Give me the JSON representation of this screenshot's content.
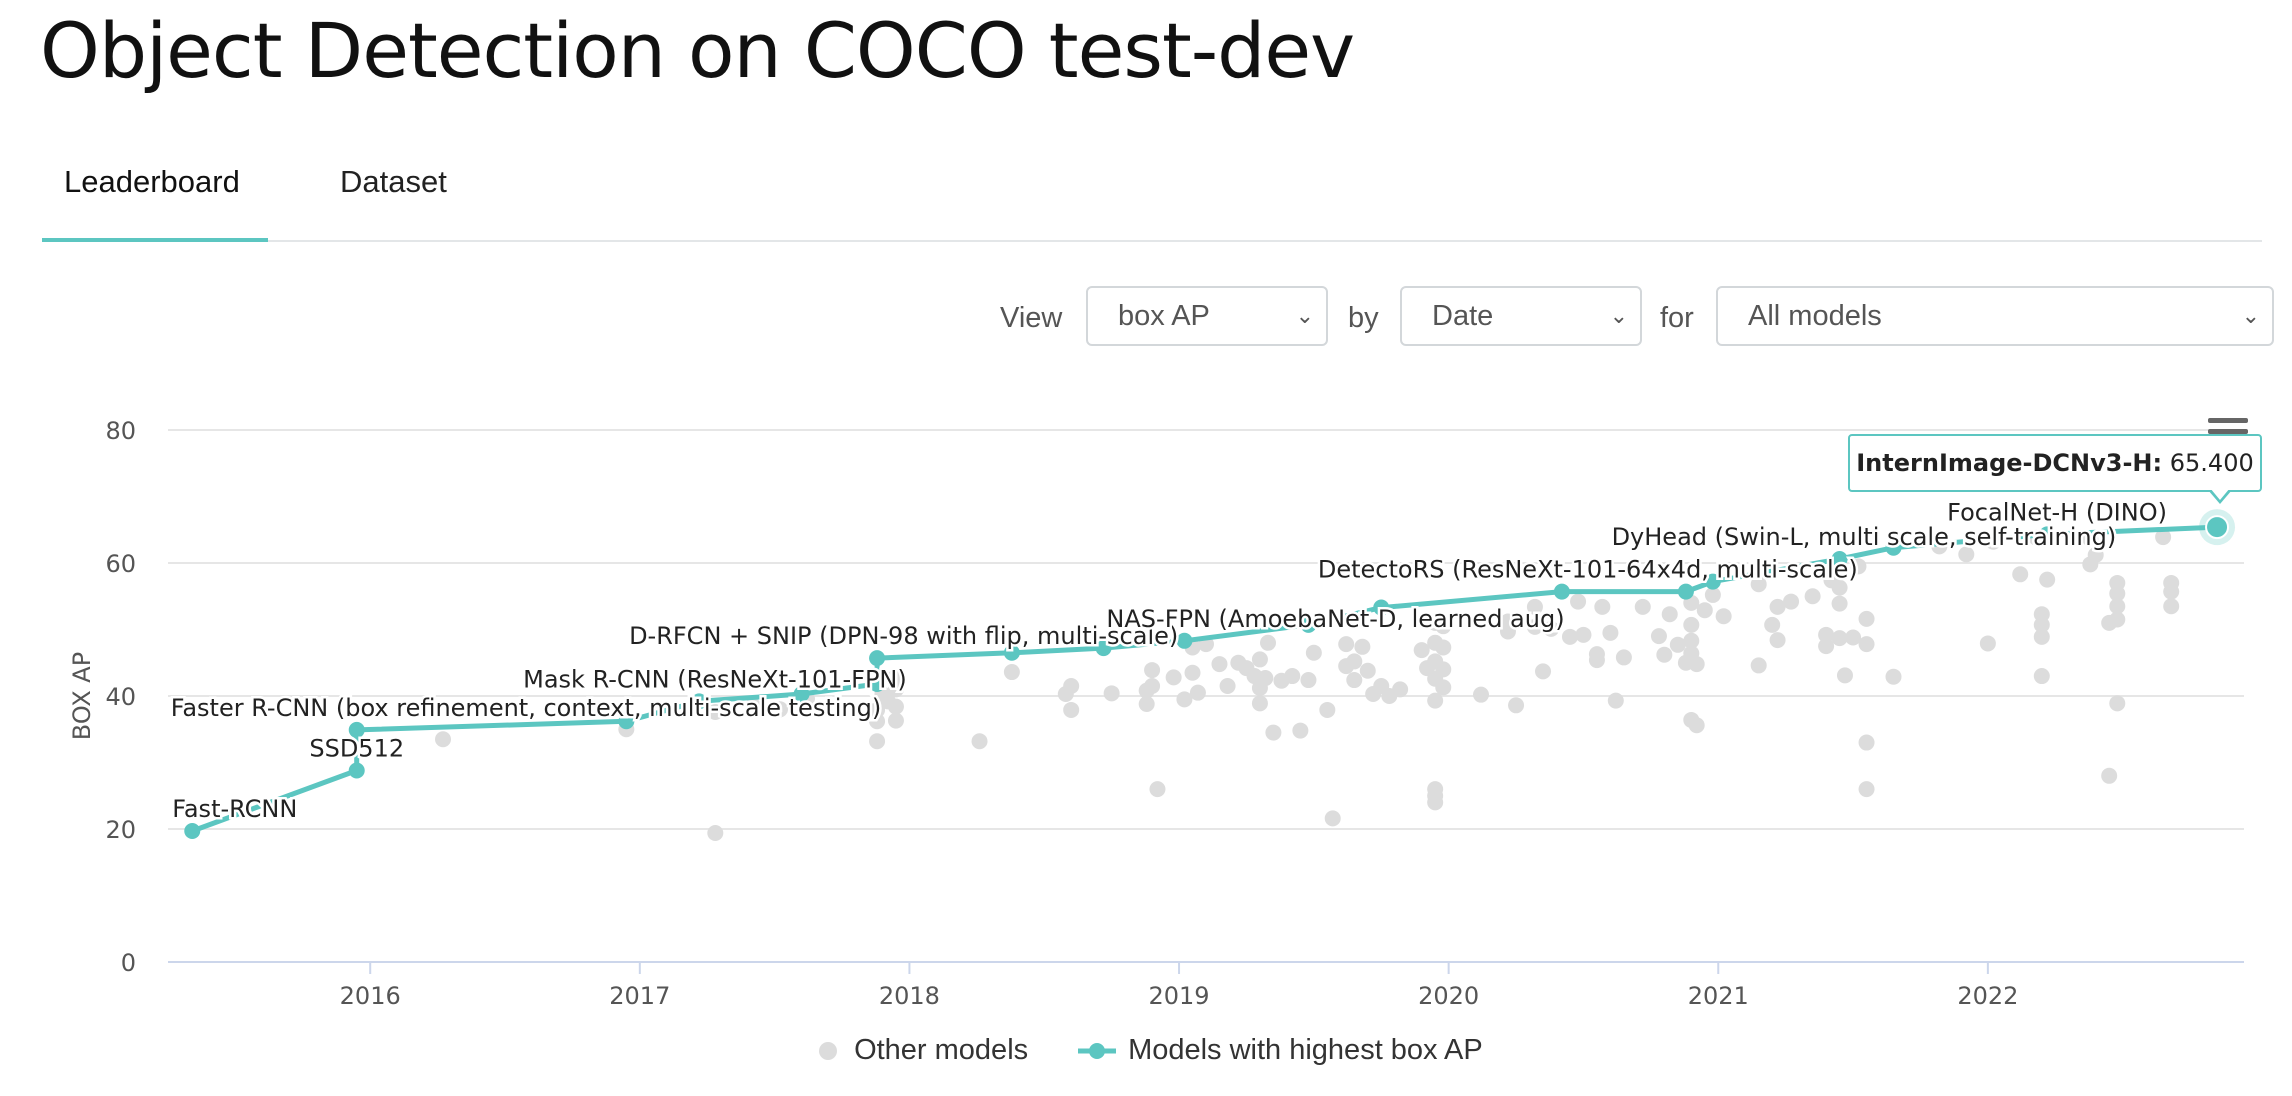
{
  "page": {
    "title": "Object Detection on COCO test-dev"
  },
  "tabs": [
    {
      "label": "Leaderboard"
    },
    {
      "label": "Dataset"
    }
  ],
  "filters": {
    "view_label": "View",
    "view_value": "box AP",
    "by_label": "by",
    "by_value": "Date",
    "for_label": "for",
    "for_value": "All models"
  },
  "colors": {
    "accent": "#5cc6c1",
    "other_points": "#dcdcdc",
    "grid": "#e6e6e6",
    "axis": "#ccd6eb"
  },
  "icons": {
    "chevron": "chevron-down-icon",
    "menu": "hamburger-menu-icon"
  },
  "tooltip": {
    "model": "InternImage-DCNv3-H:",
    "value": "65.400"
  },
  "chart_data": {
    "type": "scatter",
    "ylabel": "BOX AP",
    "xlabel": "",
    "ylim": [
      0,
      80
    ],
    "yticks": [
      "0",
      "20",
      "40",
      "60",
      "80"
    ],
    "xticks": [
      "2016",
      "2017",
      "2018",
      "2019",
      "2020",
      "2021",
      "2022"
    ],
    "xlim": [
      2015.25,
      2022.95
    ],
    "grid": true,
    "legend": {
      "placement": "bottom",
      "items": [
        "Other models",
        "Models with highest box AP"
      ]
    },
    "series": [
      {
        "name": "Models with highest box AP",
        "points": [
          {
            "x": 2015.34,
            "y": 19.7,
            "label": "Fast-RCNN"
          },
          {
            "x": 2015.95,
            "y": 28.8,
            "label": "SSD512"
          },
          {
            "x": 2015.95,
            "y": 34.9,
            "label": "Faster R-CNN (box refinement, context, multi-scale testing)"
          },
          {
            "x": 2016.95,
            "y": 36.2
          },
          {
            "x": 2017.22,
            "y": 39.2,
            "label": "Mask R-CNN (ResNeXt-101-FPN)"
          },
          {
            "x": 2017.6,
            "y": 40.3
          },
          {
            "x": 2017.88,
            "y": 41.8
          },
          {
            "x": 2017.88,
            "y": 45.7,
            "label": "D-RFCN + SNIP (DPN-98 with flip, multi-scale)"
          },
          {
            "x": 2018.38,
            "y": 46.5
          },
          {
            "x": 2018.72,
            "y": 47.2
          },
          {
            "x": 2019.02,
            "y": 48.3,
            "label": "NAS-FPN (AmoebaNet-D, learned aug)"
          },
          {
            "x": 2019.48,
            "y": 50.7
          },
          {
            "x": 2019.75,
            "y": 53.3
          },
          {
            "x": 2020.42,
            "y": 55.7,
            "label": "DetectoRS (ResNeXt-101-64x4d, multi-scale)"
          },
          {
            "x": 2020.88,
            "y": 55.7
          },
          {
            "x": 2020.98,
            "y": 57.2
          },
          {
            "x": 2021.45,
            "y": 60.6,
            "label": "DyHead (Swin-L, multi scale, self-training)"
          },
          {
            "x": 2021.65,
            "y": 62.3
          },
          {
            "x": 2022.22,
            "y": 64.3,
            "label": "FocalNet-H (DINO)"
          },
          {
            "x": 2022.85,
            "y": 65.4
          }
        ]
      },
      {
        "name": "Other models",
        "points": [
          [
            2016.27,
            33.5
          ],
          [
            2016.95,
            35.0
          ],
          [
            2017.28,
            19.4
          ],
          [
            2017.28,
            37.6
          ],
          [
            2017.42,
            38.5
          ],
          [
            2017.52,
            38.0
          ],
          [
            2017.62,
            39.6
          ],
          [
            2017.88,
            33.2
          ],
          [
            2017.88,
            36.2
          ],
          [
            2017.88,
            37.9
          ],
          [
            2017.9,
            40.3
          ],
          [
            2017.92,
            39.2
          ],
          [
            2017.95,
            42.9
          ],
          [
            2017.95,
            41.0
          ],
          [
            2017.95,
            38.4
          ],
          [
            2017.95,
            36.3
          ],
          [
            2018.26,
            33.2
          ],
          [
            2018.38,
            43.6
          ],
          [
            2018.58,
            40.3
          ],
          [
            2018.6,
            41.5
          ],
          [
            2018.6,
            37.9
          ],
          [
            2018.75,
            40.4
          ],
          [
            2018.88,
            38.8
          ],
          [
            2018.88,
            40.8
          ],
          [
            2018.9,
            43.9
          ],
          [
            2018.9,
            41.5
          ],
          [
            2018.92,
            26.0
          ],
          [
            2018.98,
            42.8
          ],
          [
            2019.02,
            39.5
          ],
          [
            2019.05,
            47.3
          ],
          [
            2019.05,
            43.5
          ],
          [
            2019.07,
            40.5
          ],
          [
            2019.1,
            47.8
          ],
          [
            2019.15,
            44.8
          ],
          [
            2019.18,
            41.5
          ],
          [
            2019.22,
            45.0
          ],
          [
            2019.25,
            44.2
          ],
          [
            2019.28,
            43.0
          ],
          [
            2019.3,
            45.5
          ],
          [
            2019.3,
            41.2
          ],
          [
            2019.32,
            42.7
          ],
          [
            2019.3,
            38.9
          ],
          [
            2019.33,
            48.0
          ],
          [
            2019.35,
            34.5
          ],
          [
            2019.38,
            42.3
          ],
          [
            2019.42,
            43.0
          ],
          [
            2019.45,
            34.8
          ],
          [
            2019.48,
            42.4
          ],
          [
            2019.5,
            46.5
          ],
          [
            2019.55,
            37.9
          ],
          [
            2019.57,
            21.6
          ],
          [
            2019.62,
            47.8
          ],
          [
            2019.62,
            44.5
          ],
          [
            2019.65,
            42.4
          ],
          [
            2019.65,
            45.2
          ],
          [
            2019.68,
            47.4
          ],
          [
            2019.7,
            43.8
          ],
          [
            2019.72,
            40.3
          ],
          [
            2019.75,
            41.5
          ],
          [
            2019.78,
            40.0
          ],
          [
            2019.82,
            41.0
          ],
          [
            2019.9,
            46.9
          ],
          [
            2019.92,
            44.2
          ],
          [
            2019.95,
            51.0
          ],
          [
            2019.95,
            48.0
          ],
          [
            2019.95,
            45.2
          ],
          [
            2019.95,
            42.6
          ],
          [
            2019.95,
            39.3
          ],
          [
            2019.95,
            26.0
          ],
          [
            2019.95,
            25.0
          ],
          [
            2019.95,
            24.0
          ],
          [
            2019.98,
            50.5
          ],
          [
            2019.98,
            47.3
          ],
          [
            2019.98,
            44.0
          ],
          [
            2019.98,
            41.3
          ],
          [
            2020.12,
            40.2
          ],
          [
            2020.22,
            49.7
          ],
          [
            2020.22,
            51.2
          ],
          [
            2020.25,
            38.6
          ],
          [
            2020.32,
            50.4
          ],
          [
            2020.32,
            53.4
          ],
          [
            2020.35,
            43.7
          ],
          [
            2020.38,
            50.1
          ],
          [
            2020.45,
            48.9
          ],
          [
            2020.48,
            54.2
          ],
          [
            2020.5,
            49.2
          ],
          [
            2020.55,
            46.3
          ],
          [
            2020.55,
            45.4
          ],
          [
            2020.57,
            53.4
          ],
          [
            2020.6,
            49.5
          ],
          [
            2020.62,
            39.3
          ],
          [
            2020.65,
            45.8
          ],
          [
            2020.72,
            53.4
          ],
          [
            2020.78,
            49.0
          ],
          [
            2020.8,
            46.2
          ],
          [
            2020.82,
            52.3
          ],
          [
            2020.85,
            47.7
          ],
          [
            2020.88,
            45.0
          ],
          [
            2020.9,
            54.0
          ],
          [
            2020.9,
            50.7
          ],
          [
            2020.9,
            48.3
          ],
          [
            2020.9,
            46.4
          ],
          [
            2020.9,
            36.4
          ],
          [
            2020.92,
            44.8
          ],
          [
            2020.92,
            35.6
          ],
          [
            2020.95,
            52.9
          ],
          [
            2020.98,
            55.2
          ],
          [
            2021.02,
            52.0
          ],
          [
            2021.15,
            56.8
          ],
          [
            2021.15,
            44.6
          ],
          [
            2021.2,
            50.7
          ],
          [
            2021.22,
            53.4
          ],
          [
            2021.22,
            48.4
          ],
          [
            2021.27,
            54.2
          ],
          [
            2021.35,
            55.0
          ],
          [
            2021.4,
            49.2
          ],
          [
            2021.4,
            47.5
          ],
          [
            2021.42,
            57.4
          ],
          [
            2021.45,
            59.8
          ],
          [
            2021.45,
            56.3
          ],
          [
            2021.45,
            53.9
          ],
          [
            2021.45,
            48.7
          ],
          [
            2021.47,
            43.1
          ],
          [
            2021.5,
            48.8
          ],
          [
            2021.52,
            59.5
          ],
          [
            2021.55,
            51.6
          ],
          [
            2021.55,
            47.8
          ],
          [
            2021.55,
            33.0
          ],
          [
            2021.55,
            26.0
          ],
          [
            2021.65,
            42.9
          ],
          [
            2021.82,
            62.5
          ],
          [
            2021.92,
            61.3
          ],
          [
            2022.0,
            47.9
          ],
          [
            2022.02,
            63.2
          ],
          [
            2022.12,
            58.3
          ],
          [
            2022.18,
            63.8
          ],
          [
            2022.2,
            52.3
          ],
          [
            2022.2,
            50.7
          ],
          [
            2022.2,
            48.9
          ],
          [
            2022.2,
            43.0
          ],
          [
            2022.22,
            57.5
          ],
          [
            2022.38,
            59.8
          ],
          [
            2022.38,
            63.6
          ],
          [
            2022.4,
            61.2
          ],
          [
            2022.45,
            28.0
          ],
          [
            2022.45,
            51.0
          ],
          [
            2022.48,
            57.0
          ],
          [
            2022.48,
            55.4
          ],
          [
            2022.48,
            53.5
          ],
          [
            2022.48,
            51.5
          ],
          [
            2022.48,
            38.9
          ],
          [
            2022.65,
            63.9
          ],
          [
            2022.68,
            57.0
          ],
          [
            2022.68,
            55.7
          ],
          [
            2022.68,
            53.5
          ]
        ]
      }
    ]
  }
}
